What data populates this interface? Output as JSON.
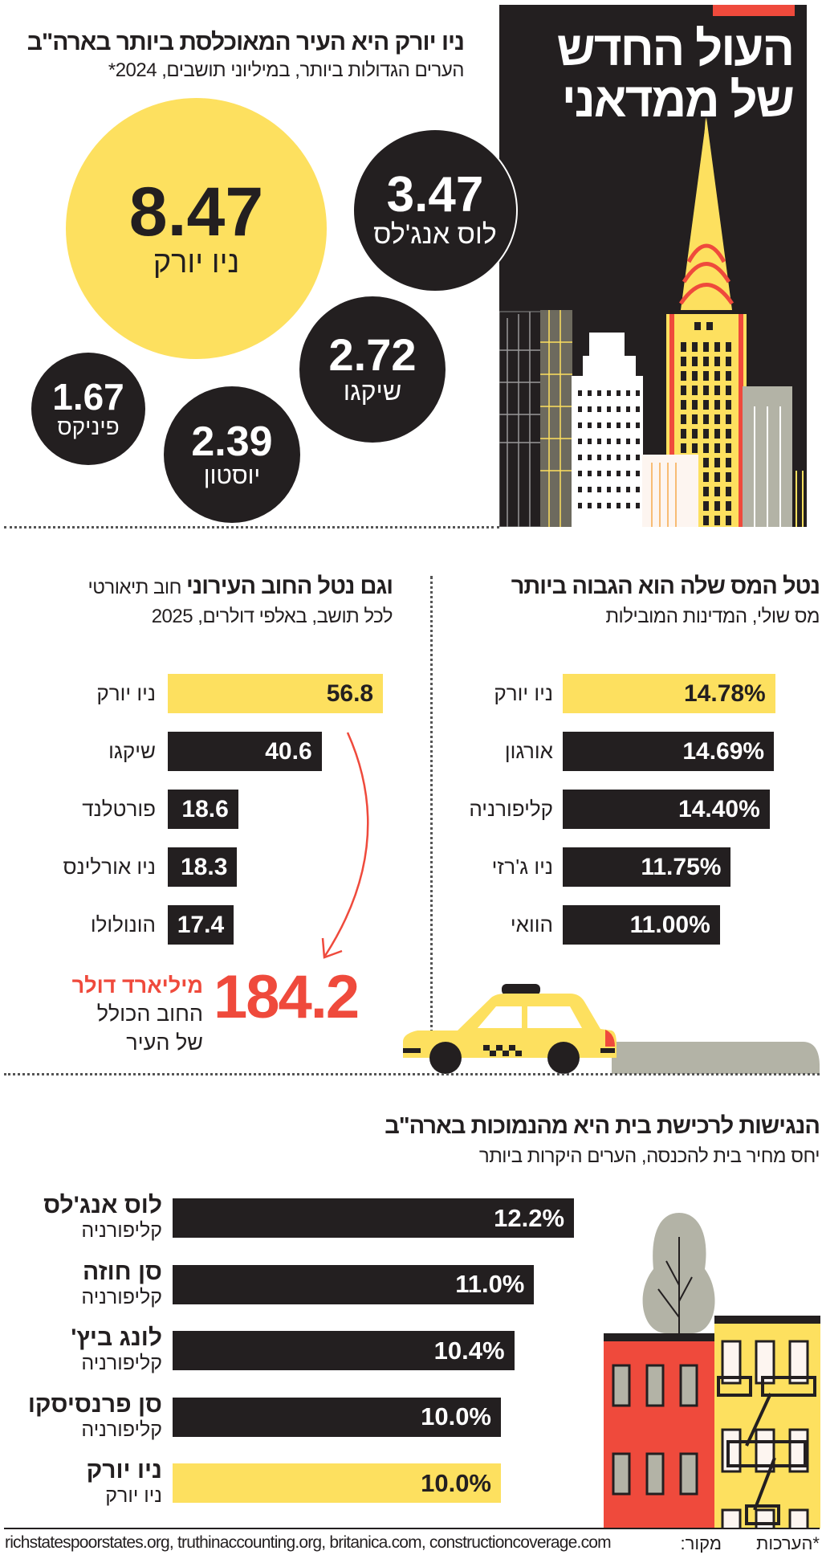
{
  "colors": {
    "black": "#231f20",
    "yellow": "#fde05f",
    "red": "#ef4a3c",
    "gray": "#b3b3a6"
  },
  "main_title": {
    "line1": "העול החדש",
    "line2": "של ממדאני"
  },
  "population": {
    "title": "ניו יורק היא העיר המאוכלסת ביותר בארה\"ב",
    "subtitle": "הערים הגדולות ביותר, במיליוני תושבים, 2024*"
  },
  "tax": {
    "title": "נטל המס שלה הוא הגבוה ביותר",
    "subtitle": "מס שולי, המדינות המובילות"
  },
  "debt": {
    "title": "וגם נטל החוב העירוני",
    "title_rest": " חוב תיאורטי",
    "subtitle": "לכל תושב, באלפי דולרים, 2025",
    "total_value": "184.2",
    "total_unit": "מיליארד דולר",
    "total_line1": "החוב הכולל",
    "total_line2": "של העיר"
  },
  "housing": {
    "title": "הנגישות לרכישת בית היא מהנמוכות בארה\"ב",
    "subtitle": "יחס מחיר בית להכנסה, הערים היקרות ביותר"
  },
  "footer": {
    "note": "*הערכות",
    "source_label": "מקור:",
    "sources": "richstatespoorstates.org, truthinaccounting.org, britanica.com, constructioncoverage.com"
  },
  "chart_data": [
    {
      "type": "bubble",
      "title": "ניו יורק היא העיר המאוכלסת ביותר בארה\"ב",
      "unit": "מיליוני תושבים",
      "items": [
        {
          "label": "ניו יורק",
          "value": 8.47,
          "display": "8.47",
          "highlight": true
        },
        {
          "label": "לוס אנג'לס",
          "value": 3.47,
          "display": "3.47"
        },
        {
          "label": "שיקגו",
          "value": 2.72,
          "display": "2.72"
        },
        {
          "label": "יוסטון",
          "value": 2.39,
          "display": "2.39"
        },
        {
          "label": "פיניקס",
          "value": 1.67,
          "display": "1.67"
        }
      ]
    },
    {
      "type": "bar",
      "orientation": "horizontal",
      "title": "נטל המס שלה הוא הגבוה ביותר",
      "categories": [
        "ניו יורק",
        "אורגון",
        "קליפורניה",
        "ניו ג'רזי",
        "הוואי"
      ],
      "values": [
        14.78,
        14.69,
        14.4,
        11.75,
        11.0
      ],
      "display": [
        "14.78%",
        "14.69%",
        "14.40%",
        "11.75%",
        "11.00%"
      ],
      "highlight": [
        0
      ]
    },
    {
      "type": "bar",
      "orientation": "horizontal",
      "title": "וגם נטל החוב העירוני",
      "categories": [
        "ניו יורק",
        "שיקגו",
        "פורטלנד",
        "ניו אורלינס",
        "הונולולו"
      ],
      "values": [
        56.8,
        40.6,
        18.6,
        18.3,
        17.4
      ],
      "display": [
        "56.8",
        "40.6",
        "18.6",
        "18.3",
        "17.4"
      ],
      "highlight": [
        0
      ]
    },
    {
      "type": "bar",
      "orientation": "horizontal",
      "title": "הנגישות לרכישת בית היא מהנמוכות בארה\"ב",
      "categories": [
        "לוס אנג'לס",
        "סן חוזה",
        "לונג ביץ'",
        "סן פרנסיסקו",
        "ניו יורק"
      ],
      "sublabels": [
        "קליפורניה",
        "קליפורניה",
        "קליפורניה",
        "קליפורניה",
        "ניו יורק"
      ],
      "values": [
        12.2,
        11.0,
        10.4,
        10.0,
        10.0
      ],
      "display": [
        "12.2%",
        "11.0%",
        "10.4%",
        "10.0%",
        "10.0%"
      ],
      "highlight": [
        4
      ]
    }
  ]
}
